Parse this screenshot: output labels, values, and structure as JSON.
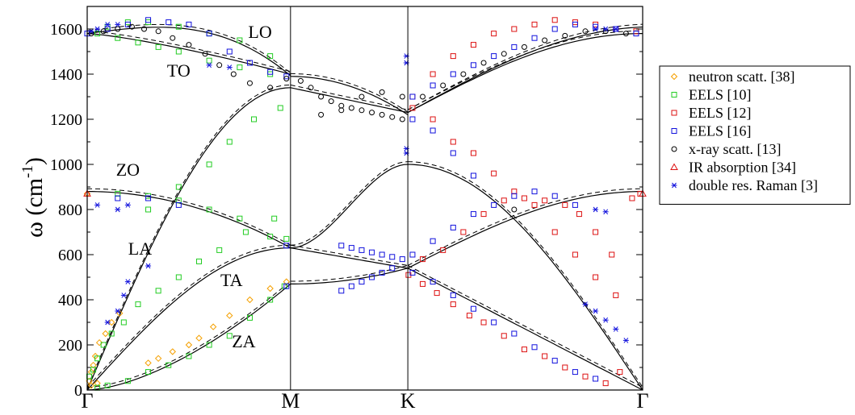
{
  "chart_data": {
    "type": "scatter",
    "title": "",
    "xlabel": "",
    "ylabel": "ω (cm",
    "ylabel_superscript": "-1",
    "ylabel_close": ")",
    "ylim": [
      0,
      1700
    ],
    "y_ticks": [
      0,
      200,
      400,
      600,
      800,
      1000,
      1200,
      1400,
      1600
    ],
    "x_points": [
      {
        "label": "Γ",
        "pos": 0
      },
      {
        "label": "M",
        "pos": 1
      },
      {
        "label": "K",
        "pos": 1.577
      },
      {
        "label": "Γ",
        "pos": 2.732
      }
    ],
    "grid": false,
    "legend_position": "right",
    "branch_labels": [
      {
        "text": "LO",
        "x": 0.85,
        "y": 1560
      },
      {
        "text": "TO",
        "x": 0.45,
        "y": 1390
      },
      {
        "text": "ZO",
        "x": 0.2,
        "y": 950
      },
      {
        "text": "LA",
        "x": 0.26,
        "y": 600
      },
      {
        "text": "TA",
        "x": 0.71,
        "y": 460
      },
      {
        "text": "ZA",
        "x": 0.77,
        "y": 190
      }
    ],
    "series": [
      {
        "name": "neutron scatt. [38]",
        "marker": "diamond",
        "color": "#f5a000",
        "points": [
          [
            0.01,
            40
          ],
          [
            0.02,
            80
          ],
          [
            0.03,
            110
          ],
          [
            0.04,
            150
          ],
          [
            0.06,
            210
          ],
          [
            0.09,
            250
          ],
          [
            0.12,
            300
          ],
          [
            0.16,
            340
          ],
          [
            0.02,
            20
          ],
          [
            0.05,
            30
          ],
          [
            0.3,
            120
          ],
          [
            0.35,
            140
          ],
          [
            0.42,
            170
          ],
          [
            0.5,
            200
          ],
          [
            0.55,
            230
          ],
          [
            0.62,
            280
          ],
          [
            0.7,
            330
          ],
          [
            0.8,
            400
          ],
          [
            0.9,
            450
          ],
          [
            0.98,
            480
          ],
          [
            0.0,
            870
          ]
        ]
      },
      {
        "name": "EELS [10]",
        "marker": "square",
        "color": "#22cc22",
        "points": [
          [
            0.01,
            60
          ],
          [
            0.03,
            90
          ],
          [
            0.05,
            140
          ],
          [
            0.08,
            200
          ],
          [
            0.12,
            250
          ],
          [
            0.18,
            300
          ],
          [
            0.25,
            380
          ],
          [
            0.35,
            440
          ],
          [
            0.45,
            500
          ],
          [
            0.55,
            570
          ],
          [
            0.65,
            620
          ],
          [
            0.78,
            700
          ],
          [
            0.92,
            760
          ],
          [
            0.98,
            670
          ],
          [
            0.05,
            10
          ],
          [
            0.1,
            20
          ],
          [
            0.2,
            40
          ],
          [
            0.3,
            80
          ],
          [
            0.4,
            110
          ],
          [
            0.5,
            150
          ],
          [
            0.6,
            200
          ],
          [
            0.7,
            240
          ],
          [
            0.8,
            320
          ],
          [
            0.9,
            400
          ],
          [
            0.97,
            460
          ],
          [
            0.15,
            870
          ],
          [
            0.3,
            860
          ],
          [
            0.45,
            840
          ],
          [
            0.6,
            800
          ],
          [
            0.75,
            760
          ],
          [
            0.9,
            680
          ],
          [
            0.3,
            800
          ],
          [
            0.45,
            900
          ],
          [
            0.6,
            1000
          ],
          [
            0.7,
            1100
          ],
          [
            0.82,
            1200
          ],
          [
            0.95,
            1250
          ],
          [
            0.05,
            1580
          ],
          [
            0.15,
            1560
          ],
          [
            0.25,
            1540
          ],
          [
            0.35,
            1520
          ],
          [
            0.45,
            1500
          ],
          [
            0.6,
            1460
          ],
          [
            0.75,
            1430
          ],
          [
            0.9,
            1400
          ],
          [
            0.1,
            1610
          ],
          [
            0.2,
            1630
          ],
          [
            0.3,
            1630
          ],
          [
            0.45,
            1610
          ],
          [
            0.6,
            1580
          ],
          [
            0.75,
            1550
          ],
          [
            0.9,
            1480
          ]
        ]
      },
      {
        "name": "EELS [12]",
        "marker": "square",
        "color": "#dd1111",
        "points": [
          [
            1.58,
            510
          ],
          [
            1.65,
            470
          ],
          [
            1.72,
            430
          ],
          [
            1.8,
            380
          ],
          [
            1.88,
            330
          ],
          [
            1.95,
            300
          ],
          [
            2.05,
            240
          ],
          [
            2.15,
            180
          ],
          [
            2.25,
            150
          ],
          [
            2.35,
            100
          ],
          [
            2.45,
            60
          ],
          [
            2.55,
            30
          ],
          [
            2.62,
            80
          ],
          [
            2.58,
            600
          ],
          [
            2.5,
            700
          ],
          [
            2.42,
            780
          ],
          [
            2.35,
            820
          ],
          [
            2.25,
            840
          ],
          [
            2.15,
            850
          ],
          [
            2.05,
            840
          ],
          [
            1.95,
            780
          ],
          [
            1.85,
            700
          ],
          [
            1.75,
            620
          ],
          [
            1.65,
            580
          ],
          [
            1.6,
            1250
          ],
          [
            1.7,
            1200
          ],
          [
            1.8,
            1100
          ],
          [
            1.9,
            1050
          ],
          [
            2.0,
            960
          ],
          [
            2.1,
            880
          ],
          [
            2.2,
            820
          ],
          [
            2.3,
            700
          ],
          [
            2.4,
            600
          ],
          [
            2.5,
            500
          ],
          [
            2.6,
            420
          ],
          [
            2.68,
            850
          ],
          [
            2.72,
            870
          ],
          [
            1.6,
            1300
          ],
          [
            1.7,
            1400
          ],
          [
            1.8,
            1480
          ],
          [
            1.9,
            1530
          ],
          [
            2.0,
            1580
          ],
          [
            2.1,
            1600
          ],
          [
            2.2,
            1620
          ],
          [
            2.3,
            1640
          ],
          [
            2.4,
            1630
          ],
          [
            2.5,
            1620
          ],
          [
            2.6,
            1600
          ],
          [
            2.7,
            1590
          ]
        ]
      },
      {
        "name": "EELS [16]",
        "marker": "square",
        "color": "#1111dd",
        "points": [
          [
            1.25,
            640
          ],
          [
            1.3,
            630
          ],
          [
            1.35,
            620
          ],
          [
            1.4,
            610
          ],
          [
            1.45,
            600
          ],
          [
            1.5,
            590
          ],
          [
            1.55,
            580
          ],
          [
            1.25,
            440
          ],
          [
            1.3,
            460
          ],
          [
            1.35,
            480
          ],
          [
            1.4,
            500
          ],
          [
            1.45,
            520
          ],
          [
            1.5,
            540
          ],
          [
            1.6,
            600
          ],
          [
            1.7,
            660
          ],
          [
            1.8,
            720
          ],
          [
            1.9,
            780
          ],
          [
            2.0,
            820
          ],
          [
            2.1,
            860
          ],
          [
            2.2,
            880
          ],
          [
            2.3,
            860
          ],
          [
            2.4,
            820
          ],
          [
            1.6,
            520
          ],
          [
            1.7,
            480
          ],
          [
            1.8,
            420
          ],
          [
            1.9,
            360
          ],
          [
            2.0,
            300
          ],
          [
            2.1,
            250
          ],
          [
            2.2,
            190
          ],
          [
            2.3,
            130
          ],
          [
            2.4,
            80
          ],
          [
            2.5,
            50
          ],
          [
            1.6,
            1300
          ],
          [
            1.7,
            1350
          ],
          [
            1.8,
            1400
          ],
          [
            1.9,
            1440
          ],
          [
            2.0,
            1480
          ],
          [
            2.1,
            1520
          ],
          [
            2.2,
            1560
          ],
          [
            2.3,
            1600
          ],
          [
            2.4,
            1620
          ],
          [
            2.5,
            1610
          ],
          [
            2.6,
            1600
          ],
          [
            2.7,
            1580
          ],
          [
            1.6,
            1200
          ],
          [
            1.7,
            1150
          ],
          [
            1.8,
            1050
          ],
          [
            1.9,
            950
          ],
          [
            0.98,
            460
          ],
          [
            0.98,
            640
          ],
          [
            0.0,
            1580
          ],
          [
            0.1,
            1600
          ],
          [
            0.2,
            1620
          ],
          [
            0.3,
            1640
          ],
          [
            0.4,
            1630
          ],
          [
            0.5,
            1620
          ],
          [
            0.6,
            1580
          ],
          [
            0.7,
            1500
          ],
          [
            0.8,
            1450
          ],
          [
            0.9,
            1410
          ],
          [
            0.98,
            1390
          ],
          [
            0.15,
            850
          ],
          [
            0.3,
            850
          ],
          [
            0.45,
            820
          ]
        ]
      },
      {
        "name": "x-ray scatt. [13]",
        "marker": "circle",
        "color": "#000000",
        "points": [
          [
            0.02,
            1580
          ],
          [
            0.08,
            1590
          ],
          [
            0.15,
            1600
          ],
          [
            0.22,
            1610
          ],
          [
            0.28,
            1600
          ],
          [
            0.35,
            1590
          ],
          [
            0.42,
            1560
          ],
          [
            0.5,
            1530
          ],
          [
            0.58,
            1490
          ],
          [
            0.65,
            1440
          ],
          [
            0.72,
            1400
          ],
          [
            0.8,
            1360
          ],
          [
            0.9,
            1340
          ],
          [
            0.98,
            1380
          ],
          [
            1.05,
            1370
          ],
          [
            1.1,
            1340
          ],
          [
            1.15,
            1300
          ],
          [
            1.2,
            1280
          ],
          [
            1.25,
            1260
          ],
          [
            1.3,
            1250
          ],
          [
            1.35,
            1240
          ],
          [
            1.4,
            1230
          ],
          [
            1.45,
            1220
          ],
          [
            1.5,
            1210
          ],
          [
            1.55,
            1200
          ],
          [
            1.15,
            1220
          ],
          [
            1.25,
            1240
          ],
          [
            1.35,
            1300
          ],
          [
            1.45,
            1320
          ],
          [
            1.55,
            1300
          ],
          [
            1.65,
            1300
          ],
          [
            1.75,
            1350
          ],
          [
            1.85,
            1400
          ],
          [
            1.95,
            1450
          ],
          [
            2.05,
            1490
          ],
          [
            2.15,
            1520
          ],
          [
            2.25,
            1550
          ],
          [
            2.35,
            1570
          ],
          [
            2.45,
            1590
          ],
          [
            2.55,
            1590
          ],
          [
            2.65,
            1580
          ],
          [
            2.1,
            800
          ]
        ]
      },
      {
        "name": "IR absorption [34]",
        "marker": "triangle",
        "color": "#dd1111",
        "points": [
          [
            0.0,
            870
          ],
          [
            2.732,
            870
          ]
        ]
      },
      {
        "name": "double res. Raman [3]",
        "marker": "star",
        "color": "#1111dd",
        "points": [
          [
            0.02,
            1590
          ],
          [
            0.05,
            1600
          ],
          [
            0.1,
            1620
          ],
          [
            0.15,
            1620
          ],
          [
            0.05,
            820
          ],
          [
            0.2,
            820
          ],
          [
            0.15,
            800
          ],
          [
            0.1,
            300
          ],
          [
            0.15,
            350
          ],
          [
            0.18,
            420
          ],
          [
            0.2,
            480
          ],
          [
            0.3,
            550
          ],
          [
            0.6,
            1440
          ],
          [
            0.7,
            1430
          ],
          [
            1.57,
            1480
          ],
          [
            1.57,
            1450
          ],
          [
            1.57,
            1070
          ],
          [
            1.57,
            1050
          ],
          [
            2.5,
            800
          ],
          [
            2.55,
            790
          ],
          [
            2.45,
            380
          ],
          [
            2.5,
            350
          ],
          [
            2.55,
            310
          ],
          [
            2.6,
            270
          ],
          [
            2.65,
            220
          ],
          [
            2.5,
            1600
          ],
          [
            2.55,
            1600
          ],
          [
            2.6,
            1600
          ]
        ]
      }
    ]
  }
}
